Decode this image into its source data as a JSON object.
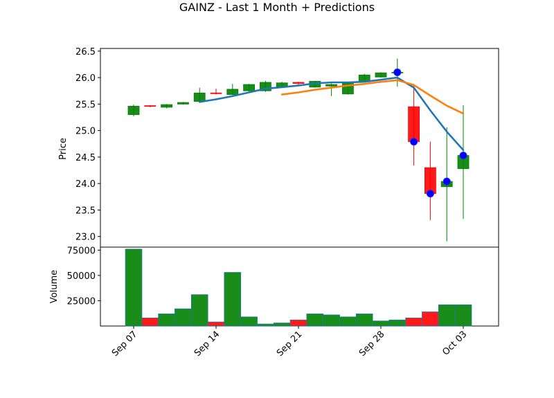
{
  "chart_data": {
    "type": "candlestick",
    "title": "GAINZ - Last 1 Month + Predictions",
    "price_panel": {
      "ylabel": "Price",
      "ylim": [
        22.8,
        26.55
      ],
      "yticks": [
        23.0,
        23.5,
        24.0,
        24.5,
        25.0,
        25.5,
        26.0,
        26.5
      ]
    },
    "volume_panel": {
      "ylabel": "Volume",
      "ylim": [
        0,
        78000
      ],
      "yticks": [
        25000,
        50000,
        75000
      ]
    },
    "x_labels": [
      {
        "label": "Sep 07",
        "index": 0
      },
      {
        "label": "Sep 14",
        "index": 5
      },
      {
        "label": "Sep 21",
        "index": 10
      },
      {
        "label": "Sep 28",
        "index": 15
      },
      {
        "label": "Oct 03",
        "index": 20
      }
    ],
    "colors": {
      "up": "#008000",
      "down": "#ff0000",
      "line_blue": "#1f77b4",
      "line_orange": "#ff7f0e",
      "marker": "#0000ff"
    },
    "candles": [
      {
        "o": 25.3,
        "h": 25.49,
        "l": 25.27,
        "c": 25.46,
        "v": 76000
      },
      {
        "o": 25.47,
        "h": 25.48,
        "l": 25.44,
        "c": 25.46,
        "v": 8000
      },
      {
        "o": 25.44,
        "h": 25.5,
        "l": 25.42,
        "c": 25.49,
        "v": 12000
      },
      {
        "o": 25.5,
        "h": 25.54,
        "l": 25.49,
        "c": 25.53,
        "v": 17000
      },
      {
        "o": 25.55,
        "h": 25.81,
        "l": 25.54,
        "c": 25.71,
        "v": 31000
      },
      {
        "o": 25.71,
        "h": 25.79,
        "l": 25.68,
        "c": 25.7,
        "v": 4000
      },
      {
        "o": 25.68,
        "h": 25.88,
        "l": 25.67,
        "c": 25.78,
        "v": 53000
      },
      {
        "o": 25.75,
        "h": 25.88,
        "l": 25.74,
        "c": 25.87,
        "v": 9000
      },
      {
        "o": 25.75,
        "h": 25.94,
        "l": 25.73,
        "c": 25.91,
        "v": 2000
      },
      {
        "o": 25.83,
        "h": 25.92,
        "l": 25.82,
        "c": 25.9,
        "v": 3000
      },
      {
        "o": 25.91,
        "h": 25.92,
        "l": 25.84,
        "c": 25.89,
        "v": 6000
      },
      {
        "o": 25.82,
        "h": 25.94,
        "l": 25.81,
        "c": 25.93,
        "v": 12000
      },
      {
        "o": 25.84,
        "h": 25.89,
        "l": 25.65,
        "c": 25.87,
        "v": 11000
      },
      {
        "o": 25.69,
        "h": 25.91,
        "l": 25.68,
        "c": 25.89,
        "v": 9000
      },
      {
        "o": 25.92,
        "h": 26.07,
        "l": 25.91,
        "c": 26.05,
        "v": 12000
      },
      {
        "o": 26.01,
        "h": 26.1,
        "l": 26.0,
        "c": 26.09,
        "v": 5000
      },
      {
        "o": 26.1,
        "h": 26.36,
        "l": 25.83,
        "c": 26.1,
        "v": 6000
      },
      {
        "o": 25.45,
        "h": 25.87,
        "l": 24.34,
        "c": 24.79,
        "v": 8000
      },
      {
        "o": 24.3,
        "h": 24.79,
        "l": 23.31,
        "c": 23.81,
        "v": 14000
      },
      {
        "o": 23.94,
        "h": 25.06,
        "l": 22.91,
        "c": 24.04,
        "v": 21000
      },
      {
        "o": 24.28,
        "h": 25.48,
        "l": 23.33,
        "c": 24.53,
        "v": 21000
      }
    ],
    "series": [
      {
        "name": "",
        "color": "#1f77b4",
        "points": [
          [
            4,
            25.54
          ],
          [
            5,
            25.59
          ],
          [
            6,
            25.65
          ],
          [
            7,
            25.72
          ],
          [
            8,
            25.79
          ],
          [
            9,
            25.82
          ],
          [
            10,
            25.85
          ],
          [
            11,
            25.89
          ],
          [
            12,
            25.91
          ],
          [
            13,
            25.91
          ],
          [
            14,
            25.92
          ],
          [
            15,
            25.96
          ],
          [
            16,
            26.0
          ],
          [
            17,
            25.81
          ],
          [
            18,
            25.38
          ],
          [
            19,
            24.98
          ],
          [
            20,
            24.63
          ]
        ]
      },
      {
        "name": "",
        "color": "#ff7f0e",
        "points": [
          [
            9,
            25.68
          ],
          [
            10,
            25.72
          ],
          [
            11,
            25.77
          ],
          [
            12,
            25.81
          ],
          [
            13,
            25.85
          ],
          [
            14,
            25.88
          ],
          [
            15,
            25.92
          ],
          [
            16,
            25.95
          ],
          [
            17,
            25.86
          ],
          [
            18,
            25.66
          ],
          [
            19,
            25.47
          ],
          [
            20,
            25.32
          ]
        ]
      }
    ],
    "prediction_markers": [
      {
        "index": 16,
        "value": 26.1
      },
      {
        "index": 17,
        "value": 24.79
      },
      {
        "index": 18,
        "value": 23.81
      },
      {
        "index": 19,
        "value": 24.04
      },
      {
        "index": 20,
        "value": 24.53
      }
    ]
  }
}
